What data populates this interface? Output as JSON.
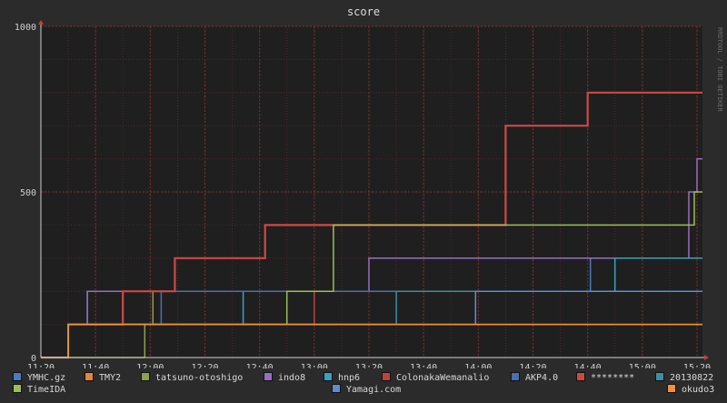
{
  "chart_data": {
    "type": "line",
    "title": "score",
    "watermark": "RRDTOOL / TOBI OETIKER",
    "xlabel": "",
    "ylabel": "",
    "x_range": [
      "11:20",
      "15:22"
    ],
    "x_ticks": [
      "11:20",
      "11:40",
      "12:00",
      "12:20",
      "12:40",
      "13:00",
      "13:20",
      "13:40",
      "14:00",
      "14:20",
      "14:40",
      "15:00",
      "15:20"
    ],
    "y_ticks": [
      0,
      500,
      1000
    ],
    "ylim": [
      0,
      1000
    ],
    "grid": true,
    "step": true,
    "legend_position": "bottom",
    "series": [
      {
        "name": "YMHC.gz",
        "color": "#4a7bbf",
        "points": [
          [
            "11:20",
            0
          ],
          [
            "11:30",
            0
          ],
          [
            "11:30",
            100
          ],
          [
            "11:37",
            100
          ],
          [
            "11:37",
            200
          ],
          [
            "14:41",
            200
          ],
          [
            "14:41",
            300
          ],
          [
            "15:22",
            300
          ]
        ]
      },
      {
        "name": "TMY2",
        "color": "#e8843a",
        "points": [
          [
            "11:20",
            0
          ],
          [
            "11:30",
            0
          ],
          [
            "11:30",
            100
          ],
          [
            "15:22",
            100
          ]
        ]
      },
      {
        "name": "tatsuno-otoshigo",
        "color": "#8da04e",
        "points": [
          [
            "11:20",
            0
          ],
          [
            "11:58",
            0
          ],
          [
            "11:58",
            100
          ],
          [
            "12:01",
            100
          ],
          [
            "12:01",
            200
          ],
          [
            "15:22",
            200
          ]
        ]
      },
      {
        "name": "indo8",
        "color": "#9b6cc2",
        "points": [
          [
            "11:20",
            0
          ],
          [
            "11:30",
            0
          ],
          [
            "11:30",
            100
          ],
          [
            "11:37",
            100
          ],
          [
            "11:37",
            200
          ],
          [
            "13:20",
            200
          ],
          [
            "13:20",
            300
          ],
          [
            "15:17",
            300
          ],
          [
            "15:17",
            500
          ],
          [
            "15:20",
            500
          ],
          [
            "15:20",
            600
          ],
          [
            "15:22",
            600
          ]
        ]
      },
      {
        "name": "hnp6",
        "color": "#3ba0c0",
        "points": [
          [
            "11:20",
            0
          ],
          [
            "11:30",
            0
          ],
          [
            "11:30",
            100
          ],
          [
            "12:34",
            100
          ],
          [
            "12:34",
            200
          ],
          [
            "14:50",
            200
          ],
          [
            "14:50",
            300
          ],
          [
            "15:22",
            300
          ]
        ]
      },
      {
        "name": "ColonakaWemanalio",
        "color": "#c04040",
        "points": [
          [
            "11:20",
            0
          ],
          [
            "11:30",
            0
          ],
          [
            "11:30",
            100
          ],
          [
            "13:00",
            100
          ],
          [
            "13:00",
            200
          ],
          [
            "15:22",
            200
          ]
        ]
      },
      {
        "name": "AKP4.0",
        "color": "#4a6fb0",
        "points": [
          [
            "11:20",
            0
          ],
          [
            "11:30",
            0
          ],
          [
            "11:30",
            100
          ],
          [
            "12:04",
            100
          ],
          [
            "12:04",
            200
          ],
          [
            "15:22",
            200
          ]
        ]
      },
      {
        "name": "********",
        "color": "#cc4a45",
        "points": [
          [
            "11:20",
            0
          ],
          [
            "11:30",
            0
          ],
          [
            "11:30",
            100
          ],
          [
            "11:50",
            100
          ],
          [
            "11:50",
            200
          ],
          [
            "12:09",
            200
          ],
          [
            "12:09",
            300
          ],
          [
            "12:42",
            300
          ],
          [
            "12:42",
            400
          ],
          [
            "14:10",
            400
          ],
          [
            "14:10",
            700
          ],
          [
            "14:40",
            700
          ],
          [
            "14:40",
            800
          ],
          [
            "15:22",
            800
          ]
        ]
      },
      {
        "name": "20130822",
        "color": "#3e8ea0",
        "points": [
          [
            "11:20",
            0
          ],
          [
            "11:30",
            0
          ],
          [
            "11:30",
            100
          ],
          [
            "13:30",
            100
          ],
          [
            "13:30",
            200
          ],
          [
            "15:22",
            200
          ]
        ]
      },
      {
        "name": "TimeIDA",
        "color": "#9cbf55",
        "points": [
          [
            "11:20",
            0
          ],
          [
            "11:30",
            0
          ],
          [
            "11:30",
            100
          ],
          [
            "12:50",
            100
          ],
          [
            "12:50",
            200
          ],
          [
            "13:07",
            200
          ],
          [
            "13:07",
            400
          ],
          [
            "15:19",
            400
          ],
          [
            "15:19",
            500
          ],
          [
            "15:22",
            500
          ]
        ]
      },
      {
        "name": "Yamagi.com",
        "color": "#5b8fd0",
        "points": [
          [
            "11:20",
            0
          ],
          [
            "11:30",
            0
          ],
          [
            "11:30",
            100
          ],
          [
            "13:59",
            100
          ],
          [
            "13:59",
            200
          ],
          [
            "15:22",
            200
          ]
        ]
      },
      {
        "name": "okudo3",
        "color": "#f0923c",
        "points": [
          [
            "11:20",
            0
          ],
          [
            "11:30",
            0
          ],
          [
            "11:30",
            100
          ],
          [
            "15:22",
            100
          ]
        ]
      }
    ]
  }
}
